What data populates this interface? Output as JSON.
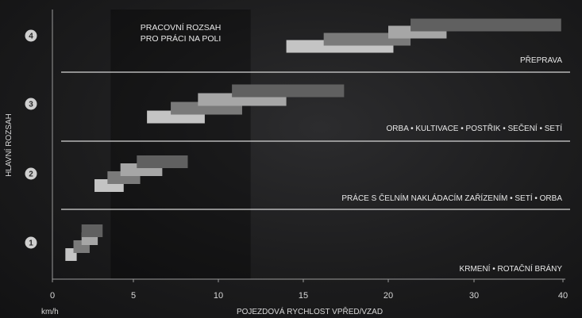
{
  "chart_data": {
    "type": "bar",
    "orientation": "horizontal-ranges",
    "xlabel": "POJEZDOVÁ RYCHLOST VPŘED/VZAD",
    "xunit": "km/h",
    "ylabel": "HLAVNÍ ROZSAH",
    "xlim": [
      0,
      40
    ],
    "xticks": [
      0,
      5,
      10,
      15,
      20,
      30,
      40
    ],
    "grid": false,
    "highlight": {
      "label_lines": [
        "PRACOVNÍ ROZSAH",
        "PRO PRÁCI NA POLI"
      ],
      "x_from": 3.6,
      "x_to": 11.9
    },
    "ranges": [
      {
        "range": "1",
        "band_label": "KRMENÍ • ROTAČNÍ BRÁNY",
        "gears": [
          {
            "from": 0.8,
            "to": 1.5,
            "shade": "#c4c4c4"
          },
          {
            "from": 1.3,
            "to": 2.3,
            "shade": "#7a7a7a"
          },
          {
            "from": 1.8,
            "to": 2.8,
            "shade": "#a6a6a6"
          },
          {
            "from": 1.8,
            "to": 3.1,
            "shade": "#606060"
          }
        ]
      },
      {
        "range": "2",
        "band_label": "PRÁCE S ČELNÍM NAKLÁDACÍM ZAŘÍZENÍM • SETÍ • ORBA",
        "gears": [
          {
            "from": 2.6,
            "to": 4.4,
            "shade": "#c4c4c4"
          },
          {
            "from": 3.4,
            "to": 5.4,
            "shade": "#7a7a7a"
          },
          {
            "from": 4.2,
            "to": 6.7,
            "shade": "#a6a6a6"
          },
          {
            "from": 5.2,
            "to": 8.2,
            "shade": "#606060"
          }
        ]
      },
      {
        "range": "3",
        "band_label": "ORBA • KULTIVACE • POSTŘIK • SEČENÍ • SETÍ",
        "gears": [
          {
            "from": 5.8,
            "to": 9.2,
            "shade": "#c4c4c4"
          },
          {
            "from": 7.2,
            "to": 11.4,
            "shade": "#7a7a7a"
          },
          {
            "from": 8.8,
            "to": 14.0,
            "shade": "#a6a6a6"
          },
          {
            "from": 10.8,
            "to": 17.4,
            "shade": "#606060"
          }
        ]
      },
      {
        "range": "4",
        "band_label": "PŘEPRAVA",
        "gears": [
          {
            "from": 14.0,
            "to": 20.6,
            "shade": "#c4c4c4"
          },
          {
            "from": 16.2,
            "to": 22.6,
            "shade": "#7a7a7a"
          },
          {
            "from": 20.0,
            "to": 26.8,
            "shade": "#a6a6a6"
          },
          {
            "from": 22.6,
            "to": 39.8,
            "shade": "#606060"
          }
        ]
      }
    ]
  }
}
